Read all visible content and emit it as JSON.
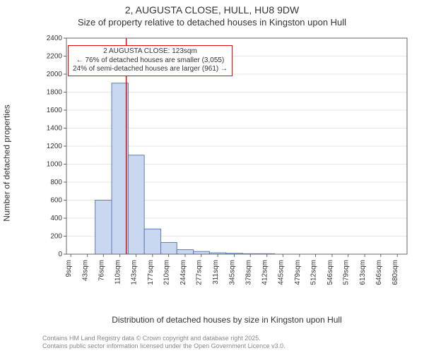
{
  "title": "2, AUGUSTA CLOSE, HULL, HU8 9DW",
  "subtitle": "Size of property relative to detached houses in Kingston upon Hull",
  "ylabel": "Number of detached properties",
  "xlabel": "Distribution of detached houses by size in Kingston upon Hull",
  "chart": {
    "type": "histogram",
    "background_color": "#ffffff",
    "grid_color": "#cccccc",
    "grid_width": 0.5,
    "axis_color": "#666666",
    "bar_fill": "#c9d8f0",
    "bar_stroke": "#5b7fb5",
    "bar_stroke_width": 1,
    "marker_line_color": "#e30b0b",
    "marker_line_value": 123,
    "xlim": [
      0,
      700
    ],
    "ylim": [
      0,
      2400
    ],
    "ytick_step": 200,
    "yticks": [
      0,
      200,
      400,
      600,
      800,
      1000,
      1200,
      1400,
      1600,
      1800,
      2000,
      2200,
      2400
    ],
    "xticks": [
      9,
      43,
      76,
      110,
      143,
      177,
      210,
      244,
      277,
      311,
      345,
      378,
      412,
      445,
      479,
      512,
      546,
      579,
      613,
      646,
      680
    ],
    "xtick_suffix": "sqm",
    "bin_width": 33.4,
    "bars": [
      {
        "x0": 26,
        "x1": 59,
        "value": 0
      },
      {
        "x0": 59,
        "x1": 93,
        "value": 600
      },
      {
        "x0": 93,
        "x1": 127,
        "value": 1900
      },
      {
        "x0": 127,
        "x1": 160,
        "value": 1100
      },
      {
        "x0": 160,
        "x1": 194,
        "value": 280
      },
      {
        "x0": 194,
        "x1": 227,
        "value": 130
      },
      {
        "x0": 227,
        "x1": 261,
        "value": 50
      },
      {
        "x0": 261,
        "x1": 294,
        "value": 30
      },
      {
        "x0": 294,
        "x1": 328,
        "value": 15
      },
      {
        "x0": 328,
        "x1": 362,
        "value": 10
      },
      {
        "x0": 362,
        "x1": 395,
        "value": 5
      },
      {
        "x0": 395,
        "x1": 428,
        "value": 5
      },
      {
        "x0": 428,
        "x1": 462,
        "value": 0
      },
      {
        "x0": 462,
        "x1": 495,
        "value": 0
      }
    ]
  },
  "callout": {
    "border_color": "#e30b0b",
    "line1": "2 AUGUSTA CLOSE: 123sqm",
    "line2": "← 76% of detached houses are smaller (3,055)",
    "line3": "24% of semi-detached houses are larger (961) →"
  },
  "footer": {
    "color": "#888888",
    "line1": "Contains HM Land Registry data © Crown copyright and database right 2025.",
    "line2": "Contains public sector information licensed under the Open Government Licence v3.0."
  }
}
